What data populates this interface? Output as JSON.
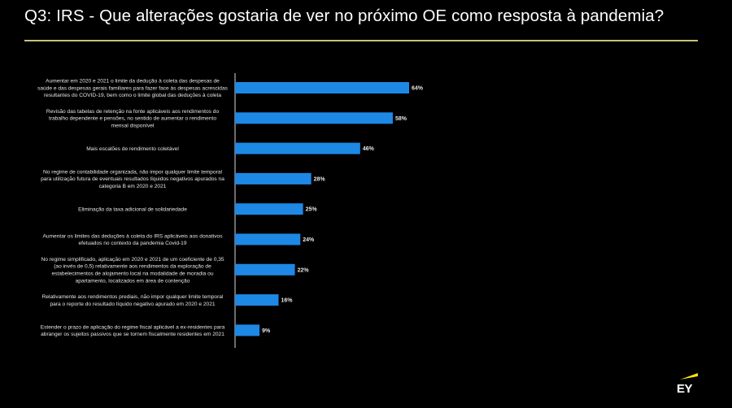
{
  "page": {
    "title": "Q3: IRS - Que alterações gostaria de ver no próximo OE como resposta à pandemia?"
  },
  "colors": {
    "background": "#000000",
    "bar": "#1e88e5",
    "title_rule": "#c9c27a",
    "logo_yellow": "#ffe600"
  },
  "logo": {
    "text": "EY"
  },
  "chart_data": {
    "type": "bar",
    "orientation": "horizontal",
    "title": "",
    "xlabel": "",
    "ylabel": "",
    "xlim": [
      0,
      100
    ],
    "grid": false,
    "legend": "none",
    "categories": [
      [
        "Aumentar em 2020 e 2021 o limite da dedução à coleta das despesas de",
        "saúde e das despesas gerais familiares para fazer face às despesas acrescidas",
        "resultantes do COVID-19, bem como o limite global das deduções à coleta"
      ],
      [
        "Revisão das tabelas de retenção na fonte aplicáveis aos rendimentos do",
        "trabalho dependente e pensões, no sentido de aumentar o rendimento",
        "mensal disponível"
      ],
      [
        "Mais escalões de rendimento coletável"
      ],
      [
        "No regime de contabilidade organizada, não impor qualquer limite temporal",
        "para utilização futura de eventuais resultados líquidos negativos apurados na",
        "categoria B em 2020 e 2021"
      ],
      [
        "Eliminação da taxa adicional de solidariedade"
      ],
      [
        "Aumentar os limites das deduções à coleta do IRS aplicáveis aos donativos",
        "efetuados no contexto da pandemia Covid-19"
      ],
      [
        "No regime simplificado, aplicação em 2020 e 2021 de um coeficiente de 0,35",
        "(ao invés de 0,5) relativamente aos rendimentos da exploração de",
        "estabelecimentos de alojamento local na modalidade de moradia ou",
        "apartamento, localizados em área de contenção"
      ],
      [
        "Relativamente aos rendimentos prediais, não impor qualquer limite temporal",
        "para o reporte do resultado líquido negativo apurado em 2020 e 2021"
      ],
      [
        "Estender o prazo de aplicação do regime fiscal aplicável a ex-residentes para",
        "abranger os sujeitos passivos que se tornem fiscalmente residentes em 2021"
      ]
    ],
    "values": [
      64,
      58,
      46,
      28,
      25,
      24,
      22,
      16,
      9
    ],
    "value_labels": [
      "64%",
      "58%",
      "46%",
      "28%",
      "25%",
      "24%",
      "22%",
      "16%",
      "9%"
    ]
  }
}
